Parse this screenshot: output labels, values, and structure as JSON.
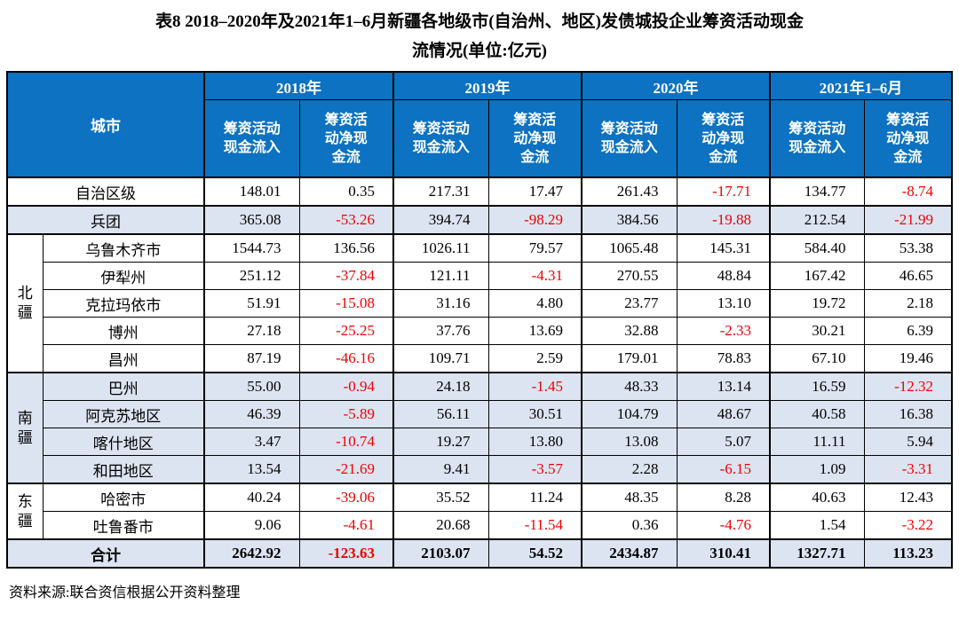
{
  "title": {
    "line1": "表8 2018–2020年及2021年1–6月新疆各地级市(自治州、地区)发债城投企业筹资活动现金",
    "line2": "流情况(单位:亿元)"
  },
  "source_note": "资料来源:联合资信根据公开资料整理",
  "colors": {
    "header_bg": "#0c72c1",
    "band_bg": "#dce4f1",
    "negative": "#ee0000"
  },
  "table": {
    "city_header": "城市",
    "year_groups": [
      "2018年",
      "2019年",
      "2020年",
      "2021年1–6月"
    ],
    "sub_labels": {
      "inflow": "筹资活动\n现金流入",
      "net": "筹资活\n动净现\n金流"
    },
    "rows": [
      {
        "region": null,
        "city": "自治区级",
        "span2": true,
        "band": false,
        "sec": true,
        "values": [
          "148.01",
          "0.35",
          "217.31",
          "17.47",
          "261.43",
          "-17.71",
          "134.77",
          "-8.74"
        ]
      },
      {
        "region": null,
        "city": "兵团",
        "span2": true,
        "band": true,
        "sec": true,
        "values": [
          "365.08",
          "-53.26",
          "394.74",
          "-98.29",
          "384.56",
          "-19.88",
          "212.54",
          "-21.99"
        ]
      },
      {
        "region": "北\n疆",
        "rowspan": 5,
        "city": "乌鲁木齐市",
        "band": false,
        "sec": true,
        "values": [
          "1544.73",
          "136.56",
          "1026.11",
          "79.57",
          "1065.48",
          "145.31",
          "584.40",
          "53.38"
        ]
      },
      {
        "city": "伊犁州",
        "band": false,
        "values": [
          "251.12",
          "-37.84",
          "121.11",
          "-4.31",
          "270.55",
          "48.84",
          "167.42",
          "46.65"
        ]
      },
      {
        "city": "克拉玛依市",
        "band": false,
        "values": [
          "51.91",
          "-15.08",
          "31.16",
          "4.80",
          "23.77",
          "13.10",
          "19.72",
          "2.18"
        ]
      },
      {
        "city": "博州",
        "band": false,
        "values": [
          "27.18",
          "-25.25",
          "37.76",
          "13.69",
          "32.88",
          "-2.33",
          "30.21",
          "6.39"
        ]
      },
      {
        "city": "昌州",
        "band": false,
        "values": [
          "87.19",
          "-46.16",
          "109.71",
          "2.59",
          "179.01",
          "78.83",
          "67.10",
          "19.46"
        ]
      },
      {
        "region": "南\n疆",
        "rowspan": 4,
        "city": "巴州",
        "band": true,
        "sec": true,
        "values": [
          "55.00",
          "-0.94",
          "24.18",
          "-1.45",
          "48.33",
          "13.14",
          "16.59",
          "-12.32"
        ]
      },
      {
        "city": "阿克苏地区",
        "band": true,
        "values": [
          "46.39",
          "-5.89",
          "56.11",
          "30.51",
          "104.79",
          "48.67",
          "40.58",
          "16.38"
        ]
      },
      {
        "city": "喀什地区",
        "band": true,
        "values": [
          "3.47",
          "-10.74",
          "19.27",
          "13.80",
          "13.08",
          "5.07",
          "11.11",
          "5.94"
        ]
      },
      {
        "city": "和田地区",
        "band": true,
        "values": [
          "13.54",
          "-21.69",
          "9.41",
          "-3.57",
          "2.28",
          "-6.15",
          "1.09",
          "-3.31"
        ]
      },
      {
        "region": "东\n疆",
        "rowspan": 2,
        "city": "哈密市",
        "band": false,
        "sec": true,
        "values": [
          "40.24",
          "-39.06",
          "35.52",
          "11.24",
          "48.35",
          "8.28",
          "40.63",
          "12.43"
        ]
      },
      {
        "city": "吐鲁番市",
        "band": false,
        "values": [
          "9.06",
          "-4.61",
          "20.68",
          "-11.54",
          "0.36",
          "-4.76",
          "1.54",
          "-3.22"
        ]
      }
    ],
    "total": {
      "label": "合计",
      "values": [
        "2642.92",
        "-123.63",
        "2103.07",
        "54.52",
        "2434.87",
        "310.41",
        "1327.71",
        "113.23"
      ]
    }
  }
}
